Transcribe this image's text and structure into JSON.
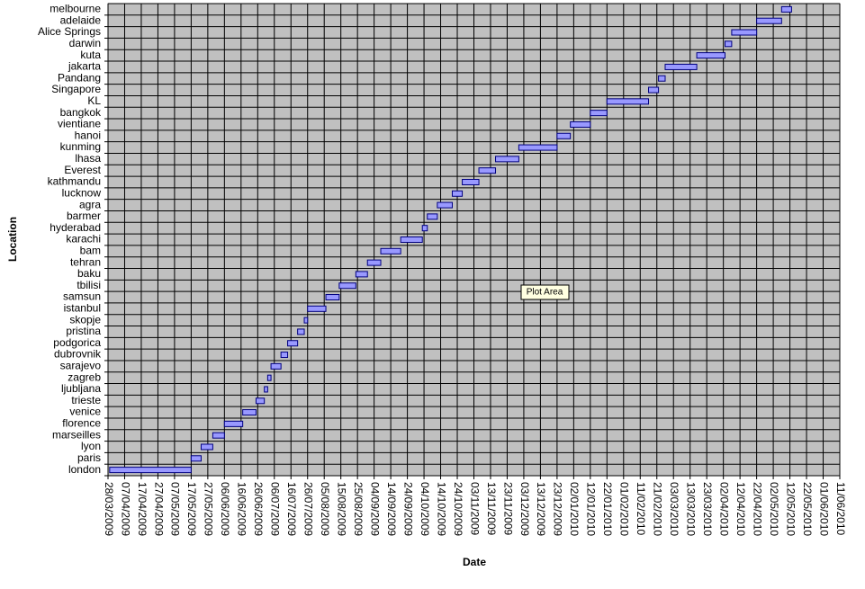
{
  "chart_data": {
    "type": "gantt",
    "x_label": "Date",
    "y_label": "Location",
    "tooltip": "Plot Area",
    "categories": [
      "london",
      "paris",
      "lyon",
      "marseilles",
      "florence",
      "venice",
      "trieste",
      "ljubljana",
      "zagreb",
      "sarajevo",
      "dubrovnik",
      "podgorica",
      "pristina",
      "skopje",
      "istanbul",
      "samsun",
      "tbilisi",
      "baku",
      "tehran",
      "bam",
      "karachi",
      "hyderabad",
      "barmer",
      "agra",
      "lucknow",
      "kathmandu",
      "Everest",
      "lhasa",
      "kunming",
      "hanoi",
      "vientiane",
      "bangkok",
      "KL",
      "Singapore",
      "Pandang",
      "jakarta",
      "kuta",
      "darwin",
      "Alice Springs",
      "adelaide",
      "melbourne"
    ],
    "start": [
      "29/03/2009",
      "17/05/2009",
      "23/05/2009",
      "30/05/2009",
      "06/06/2009",
      "17/06/2009",
      "25/06/2009",
      "30/06/2009",
      "02/07/2009",
      "04/07/2009",
      "10/07/2009",
      "14/07/2009",
      "20/07/2009",
      "24/07/2009",
      "26/07/2009",
      "06/08/2009",
      "14/08/2009",
      "24/08/2009",
      "31/08/2009",
      "08/09/2009",
      "20/09/2009",
      "03/10/2009",
      "06/10/2009",
      "12/10/2009",
      "21/10/2009",
      "27/10/2009",
      "06/11/2009",
      "16/11/2009",
      "30/11/2009",
      "23/12/2009",
      "31/12/2009",
      "12/01/2010",
      "22/01/2010",
      "16/02/2010",
      "22/02/2010",
      "26/02/2010",
      "17/03/2010",
      "03/04/2010",
      "07/04/2010",
      "22/04/2010",
      "07/05/2010"
    ],
    "duration": [
      49,
      6,
      7,
      7,
      11,
      8,
      5,
      2,
      2,
      6,
      4,
      6,
      4,
      2,
      11,
      8,
      10,
      7,
      8,
      12,
      13,
      3,
      6,
      9,
      6,
      10,
      10,
      14,
      23,
      8,
      12,
      10,
      25,
      6,
      4,
      19,
      17,
      4,
      15,
      15,
      6
    ],
    "color": "#9999ff",
    "border_color": "#000080",
    "plot_color": "#c0c0c0",
    "grid": true,
    "xlim": [
      "28/03/2009",
      "11/06/2010"
    ],
    "xticks": [
      "28/03/2009",
      "07/04/2009",
      "17/04/2009",
      "27/04/2009",
      "07/05/2009",
      "17/05/2009",
      "27/05/2009",
      "06/06/2009",
      "16/06/2009",
      "26/06/2009",
      "06/07/2009",
      "16/07/2009",
      "26/07/2009",
      "05/08/2009",
      "15/08/2009",
      "25/08/2009",
      "04/09/2009",
      "14/09/2009",
      "24/09/2009",
      "04/10/2009",
      "14/10/2009",
      "24/10/2009",
      "03/11/2009",
      "13/11/2009",
      "23/11/2009",
      "03/12/2009",
      "13/12/2009",
      "23/12/2009",
      "02/01/2010",
      "12/01/2010",
      "22/01/2010",
      "01/02/2010",
      "11/02/2010",
      "21/02/2010",
      "03/03/2010",
      "13/03/2010",
      "23/03/2010",
      "02/04/2010",
      "12/04/2010",
      "22/04/2010",
      "02/05/2010",
      "12/05/2010",
      "22/05/2010",
      "01/06/2010",
      "11/06/2010"
    ]
  }
}
